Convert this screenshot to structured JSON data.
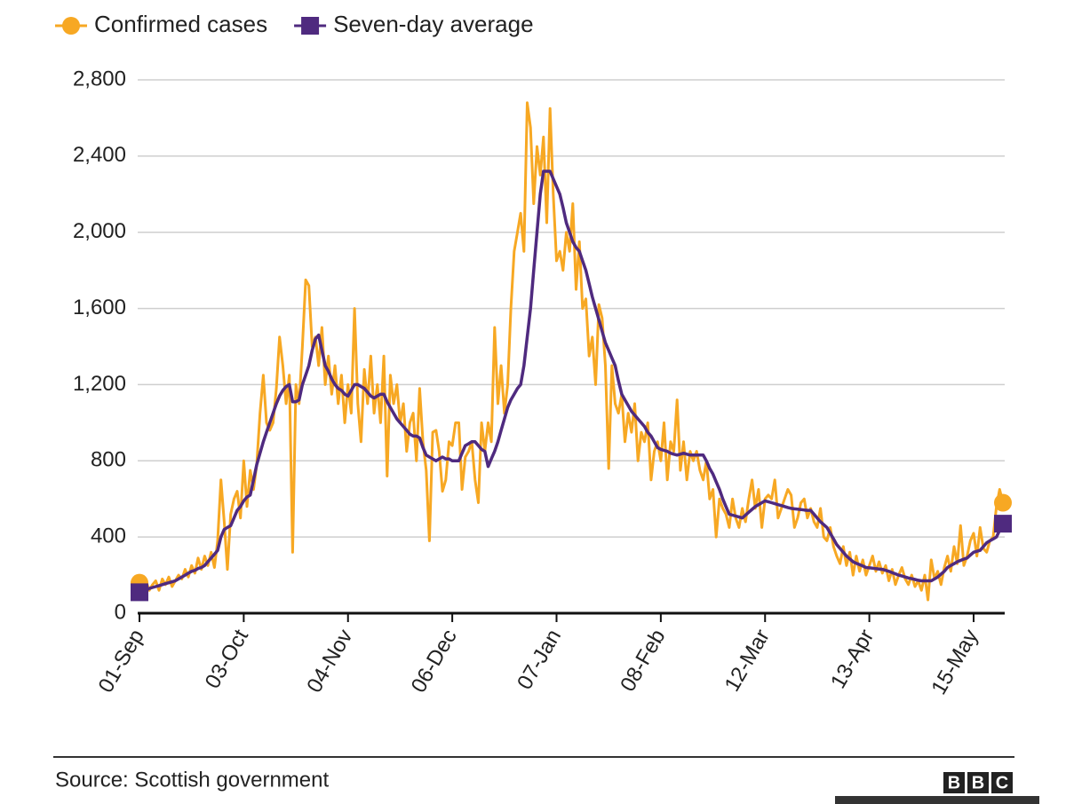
{
  "chart_data": {
    "type": "line",
    "categories": [
      "01-Sep",
      null,
      null,
      null,
      null,
      null,
      null,
      null,
      null,
      null,
      null,
      null,
      null,
      null,
      null,
      null,
      null,
      null,
      null,
      null,
      null,
      null,
      null,
      null,
      null,
      null,
      null,
      null,
      null,
      null,
      null,
      null,
      "03-Oct",
      null,
      null,
      null,
      null,
      null,
      null,
      null,
      null,
      null,
      null,
      null,
      null,
      null,
      null,
      null,
      null,
      null,
      null,
      null,
      null,
      null,
      null,
      null,
      null,
      null,
      null,
      null,
      null,
      null,
      null,
      null,
      "04-Nov",
      null,
      null,
      null,
      null,
      null,
      null,
      null,
      null,
      null,
      null,
      null,
      null,
      null,
      null,
      null,
      null,
      null,
      null,
      null,
      null,
      null,
      null,
      null,
      null,
      null,
      null,
      null,
      null,
      null,
      null,
      null,
      "06-Dec",
      null,
      null,
      null,
      null,
      null,
      null,
      null,
      null,
      null,
      null,
      null,
      null,
      null,
      null,
      null,
      null,
      null,
      null,
      null,
      null,
      null,
      null,
      null,
      null,
      null,
      null,
      null,
      null,
      null,
      null,
      null,
      "07-Jan",
      null,
      null,
      null,
      null,
      null,
      null,
      null,
      null,
      null,
      null,
      null,
      null,
      null,
      null,
      null,
      null,
      null,
      null,
      null,
      null,
      null,
      null,
      null,
      null,
      null,
      null,
      null,
      null,
      null,
      null,
      null,
      "08-Feb",
      null,
      null,
      null,
      null,
      null,
      null,
      null,
      null,
      null,
      null,
      null,
      null,
      null,
      null,
      null,
      null,
      null,
      null,
      null,
      null,
      null,
      null,
      null,
      null,
      null,
      null,
      null,
      null,
      null,
      null,
      null,
      "12-Mar",
      null,
      null,
      null,
      null,
      null,
      null,
      null,
      null,
      null,
      null,
      null,
      null,
      null,
      null,
      null,
      null,
      null,
      null,
      null,
      null,
      null,
      null,
      null,
      null,
      null,
      null,
      null,
      null,
      null,
      null,
      null,
      "13-Apr",
      null,
      null,
      null,
      null,
      null,
      null,
      null,
      null,
      null,
      null,
      null,
      null,
      null,
      null,
      null,
      null,
      null,
      null,
      null,
      null,
      null,
      null,
      null,
      null,
      null,
      null,
      null,
      null,
      null,
      null,
      null,
      "15-May",
      null,
      null,
      null,
      null,
      null,
      null,
      null,
      null,
      null
    ],
    "series": [
      {
        "name": "Confirmed cases",
        "color": "#f7a823",
        "marker": "circle",
        "values": [
          160,
          130,
          170,
          120,
          150,
          170,
          120,
          180,
          150,
          190,
          140,
          170,
          200,
          180,
          230,
          190,
          250,
          210,
          290,
          230,
          300,
          250,
          320,
          240,
          380,
          700,
          480,
          230,
          520,
          600,
          640,
          500,
          800,
          560,
          750,
          650,
          780,
          1050,
          1250,
          1000,
          960,
          1000,
          1180,
          1450,
          1300,
          1100,
          1250,
          320,
          1200,
          1100,
          1400,
          1750,
          1720,
          1400,
          1450,
          1300,
          1500,
          1200,
          1350,
          1150,
          1300,
          1100,
          1250,
          1000,
          1200,
          1050,
          1600,
          1100,
          900,
          1280,
          1100,
          1350,
          1050,
          1200,
          1000,
          1350,
          720,
          1250,
          1100,
          1200,
          1000,
          1100,
          850,
          1000,
          1050,
          800,
          1180,
          900,
          750,
          380,
          950,
          960,
          850,
          640,
          700,
          900,
          880,
          1000,
          1000,
          650,
          820,
          850,
          900,
          700,
          580,
          1000,
          850,
          1000,
          900,
          1500,
          1100,
          1300,
          1050,
          1200,
          1600,
          1900,
          2000,
          2100,
          1900,
          2680,
          2550,
          2150,
          2450,
          2300,
          2500,
          2050,
          2650,
          2200,
          1850,
          1900,
          1800,
          2000,
          1900,
          2150,
          1700,
          1950,
          1600,
          1650,
          1350,
          1450,
          1200,
          1620,
          1550,
          1300,
          760,
          1300,
          1100,
          1050,
          1150,
          900,
          1050,
          950,
          1100,
          800,
          950,
          900,
          1000,
          700,
          850,
          900,
          800,
          1000,
          700,
          900,
          850,
          1120,
          750,
          900,
          700,
          850,
          800,
          850,
          750,
          700,
          800,
          600,
          650,
          400,
          600,
          550,
          520,
          450,
          600,
          500,
          450,
          550,
          480,
          600,
          700,
          550,
          650,
          450,
          600,
          620,
          600,
          700,
          500,
          550,
          600,
          650,
          620,
          450,
          500,
          580,
          600,
          500,
          550,
          480,
          450,
          550,
          400,
          380,
          450,
          350,
          300,
          260,
          350,
          250,
          320,
          200,
          300,
          220,
          280,
          200,
          250,
          300,
          220,
          270,
          210,
          250,
          170,
          230,
          150,
          200,
          240,
          180,
          150,
          200,
          140,
          170,
          120,
          200,
          70,
          280,
          180,
          220,
          150,
          240,
          300,
          220,
          350,
          260,
          460,
          250,
          300,
          380,
          420,
          300,
          450,
          340,
          320,
          380,
          400,
          560,
          650,
          580
        ]
      },
      {
        "name": "Seven-day average",
        "color": "#4f2a7f",
        "marker": "square",
        "values": [
          110,
          115,
          120,
          130,
          135,
          140,
          145,
          150,
          155,
          160,
          165,
          170,
          180,
          190,
          200,
          210,
          220,
          225,
          235,
          240,
          250,
          270,
          290,
          310,
          330,
          400,
          440,
          450,
          460,
          500,
          540,
          560,
          590,
          610,
          620,
          700,
          780,
          840,
          900,
          950,
          1000,
          1050,
          1100,
          1140,
          1170,
          1190,
          1200,
          1110,
          1110,
          1120,
          1200,
          1250,
          1300,
          1380,
          1440,
          1460,
          1380,
          1300,
          1270,
          1230,
          1200,
          1180,
          1170,
          1150,
          1140,
          1170,
          1200,
          1200,
          1190,
          1180,
          1160,
          1140,
          1130,
          1140,
          1150,
          1150,
          1110,
          1080,
          1050,
          1020,
          1000,
          980,
          960,
          940,
          930,
          930,
          920,
          870,
          830,
          820,
          810,
          800,
          810,
          820,
          810,
          810,
          800,
          800,
          800,
          840,
          880,
          890,
          900,
          900,
          880,
          860,
          850,
          770,
          810,
          850,
          900,
          960,
          1020,
          1080,
          1120,
          1150,
          1180,
          1200,
          1300,
          1450,
          1600,
          1800,
          2000,
          2200,
          2320,
          2320,
          2320,
          2280,
          2240,
          2200,
          2130,
          2050,
          2000,
          1950,
          1920,
          1900,
          1850,
          1800,
          1730,
          1660,
          1600,
          1540,
          1480,
          1420,
          1380,
          1340,
          1300,
          1220,
          1150,
          1120,
          1090,
          1060,
          1040,
          1020,
          1000,
          980,
          950,
          930,
          900,
          870,
          860,
          855,
          850,
          840,
          835,
          830,
          835,
          840,
          835,
          830,
          830,
          830,
          830,
          830,
          800,
          760,
          730,
          690,
          650,
          600,
          560,
          520,
          515,
          510,
          505,
          500,
          515,
          530,
          545,
          560,
          570,
          580,
          590,
          585,
          580,
          575,
          570,
          565,
          560,
          555,
          550,
          548,
          546,
          544,
          542,
          540,
          540,
          520,
          500,
          480,
          465,
          450,
          420,
          390,
          360,
          340,
          320,
          300,
          285,
          270,
          262,
          255,
          248,
          240,
          238,
          236,
          234,
          232,
          230,
          225,
          220,
          213,
          207,
          200,
          195,
          190,
          185,
          181,
          177,
          173,
          170,
          170,
          170,
          170,
          180,
          190,
          205,
          220,
          240,
          250,
          260,
          270,
          277,
          284,
          290,
          305,
          320,
          325,
          330,
          350,
          370,
          380,
          390,
          400,
          435,
          470
        ]
      }
    ],
    "ylim": [
      0,
      2800
    ],
    "yticks": [
      0,
      400,
      800,
      {
        "value": 1200,
        "label": "1,200"
      },
      {
        "value": 1600,
        "label": "1,600"
      },
      {
        "value": 2000,
        "label": "2,000"
      },
      {
        "value": 2400,
        "label": "2,400"
      },
      {
        "value": 2800,
        "label": "2,800"
      }
    ],
    "grid": true,
    "legend": "top-left",
    "source": "Source: Scottish government",
    "brand": [
      "B",
      "B",
      "C"
    ]
  }
}
